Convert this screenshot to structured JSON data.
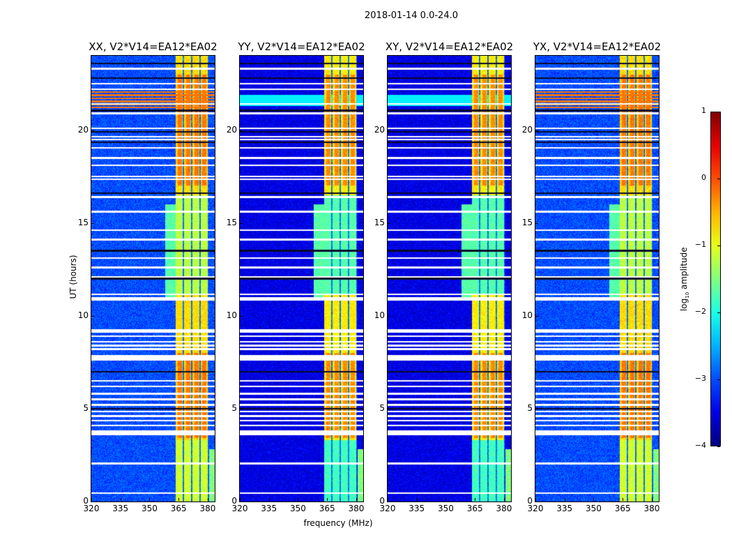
{
  "suptitle": "2018-01-14 0.0-24.0",
  "xlabel": "frequency (MHz)",
  "ylabel": "UT (hours)",
  "chart_data": [
    {
      "type": "heatmap",
      "title": "XX, V2*V14=EA12*EA02",
      "xlim": [
        320,
        383.6
      ],
      "ylim": [
        0,
        24
      ],
      "xticks": [
        "320",
        "335",
        "350",
        "365",
        "380"
      ],
      "yticks": [
        "0",
        "5",
        "10",
        "15",
        "20"
      ],
      "background_log_amp": -3.0,
      "band_log_amp": -0.7
    },
    {
      "type": "heatmap",
      "title": "YY, V2*V14=EA12*EA02",
      "xlim": [
        320,
        383.6
      ],
      "ylim": [
        0,
        24
      ],
      "xticks": [
        "320",
        "335",
        "350",
        "365",
        "380"
      ],
      "yticks": [
        "0",
        "5",
        "10",
        "15",
        "20"
      ],
      "background_log_amp": -3.5,
      "band_log_amp": -0.8
    },
    {
      "type": "heatmap",
      "title": "XY, V2*V14=EA12*EA02",
      "xlim": [
        320,
        383.6
      ],
      "ylim": [
        0,
        24
      ],
      "xticks": [
        "320",
        "335",
        "350",
        "365",
        "380"
      ],
      "yticks": [
        "0",
        "5",
        "10",
        "15",
        "20"
      ],
      "background_log_amp": -3.5,
      "band_log_amp": -0.8
    },
    {
      "type": "heatmap",
      "title": "YX, V2*V14=EA12*EA02",
      "xlim": [
        320,
        383.6
      ],
      "ylim": [
        0,
        24
      ],
      "xticks": [
        "320",
        "335",
        "350",
        "365",
        "380"
      ],
      "yticks": [
        "0",
        "5",
        "10",
        "15",
        "20"
      ],
      "background_log_amp": -3.0,
      "band_log_amp": -0.7
    }
  ],
  "rfi_band_mhz": [
    361,
    380.5
  ],
  "flagged_ut_hours": [
    0.45,
    2.05,
    3.6,
    3.7,
    3.8,
    4.1,
    4.35,
    4.6,
    4.85,
    5.2,
    5.5,
    5.8,
    6.2,
    6.5,
    7.65,
    7.75,
    7.85,
    8.2,
    8.4,
    8.6,
    8.9,
    9.15,
    9.25,
    10.85,
    10.95,
    11.15,
    12.1,
    12.6,
    13.1,
    14.1,
    14.6,
    15.6,
    16.4,
    17.35,
    17.5,
    18.1,
    18.5,
    19.05,
    19.5,
    19.65,
    20.1,
    20.9,
    21.4,
    22.2,
    22.5,
    23.3
  ],
  "dark_ut_hours": [
    5.0,
    7.0,
    12.0,
    13.5,
    16.6,
    19.35,
    19.9,
    21.05,
    22.8,
    23.6
  ],
  "colorbar": {
    "label": "log10 amplitude",
    "label_main": "log",
    "label_sub": "10",
    "label_rest": " amplitude",
    "range": [
      -4,
      1
    ],
    "ticks": [
      "1",
      "0",
      "−1",
      "−2",
      "−3",
      "−4"
    ],
    "colormap": "jet"
  }
}
